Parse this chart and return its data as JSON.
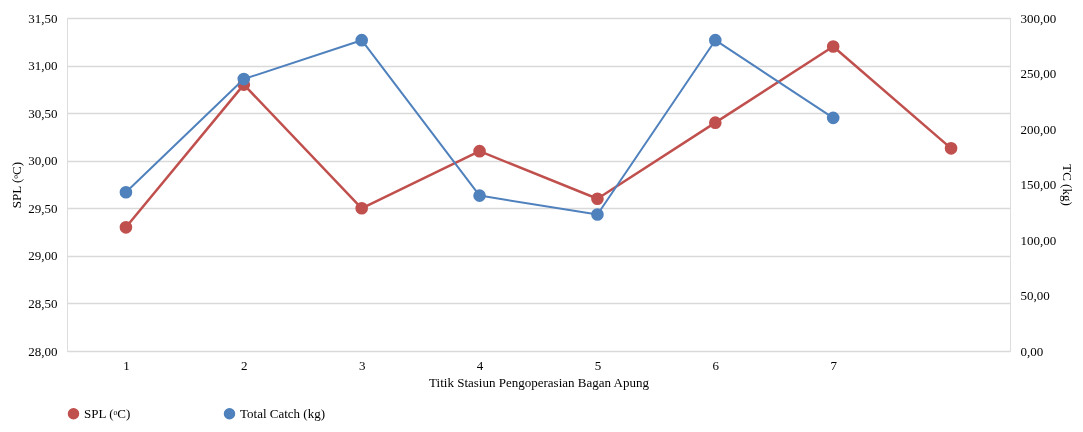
{
  "chart_data": {
    "type": "line",
    "categories": [
      "1",
      "2",
      "3",
      "4",
      "5",
      "6",
      "7",
      null
    ],
    "xlabel": "Titik Stasiun Pengoperasian Bagan Apung",
    "ylabel": "SPL (ᵒC)",
    "y2label": "TC (kg)",
    "ylim": [
      28,
      31.5
    ],
    "yticks": [
      {
        "value": 28,
        "label": "28,00"
      },
      {
        "value": 28.5,
        "label": "28,50"
      },
      {
        "value": 29,
        "label": "29,00"
      },
      {
        "value": 29.5,
        "label": "29,50"
      },
      {
        "value": 30,
        "label": "30,00"
      },
      {
        "value": 30.5,
        "label": "30,50"
      },
      {
        "value": 31,
        "label": "31,00"
      },
      {
        "value": 31.5,
        "label": "31,50"
      }
    ],
    "y2lim": [
      0,
      300
    ],
    "y2ticks": [
      {
        "value": 0,
        "label": "0,00"
      },
      {
        "value": 50,
        "label": "50,00"
      },
      {
        "value": 100,
        "label": "100,00"
      },
      {
        "value": 150,
        "label": "150,00"
      },
      {
        "value": 200,
        "label": "200,00"
      },
      {
        "value": 250,
        "label": "250,00"
      },
      {
        "value": 300,
        "label": "300,00"
      }
    ],
    "series": [
      {
        "name": "SPL (ᵒC)",
        "color": "#c0504d",
        "values": [
          29.3,
          30.8,
          29.5,
          30.1,
          29.6,
          30.4,
          31.2,
          30.13
        ]
      },
      {
        "name": "Total Catch (kg)",
        "color": "#4f81bd",
        "axis": "y2",
        "values": [
          143,
          245,
          280,
          140,
          123,
          280,
          210,
          null
        ]
      }
    ],
    "grid": "y",
    "legend": "bottom",
    "marker": "circle",
    "line_style": "solid"
  }
}
